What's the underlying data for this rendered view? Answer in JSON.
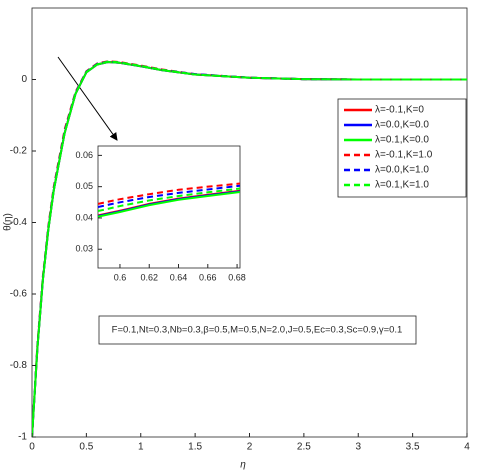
{
  "chart_data": [
    {
      "type": "line",
      "xlabel": "η",
      "ylabel": "θ(η)",
      "xlim": [
        0,
        4
      ],
      "ylim": [
        -1,
        0.2
      ],
      "xticks": [
        0,
        0.5,
        1,
        1.5,
        2,
        2.5,
        3,
        3.5,
        4
      ],
      "yticks": [
        -1,
        -0.8,
        -0.6,
        -0.4,
        -0.2,
        0
      ],
      "legend": "upper right",
      "annotation": "F=0.1,Nt=0.3,Nb=0.3,β=0.5,M=0.5,N=2.0,J=0.5,Ec=0.3,Sc=0.9,γ=0.1",
      "x": [
        0,
        0.05,
        0.1,
        0.15,
        0.2,
        0.3,
        0.4,
        0.5,
        0.6,
        0.7,
        0.8,
        1,
        1.2,
        1.5,
        2,
        2.5,
        3,
        4
      ],
      "series": [
        {
          "name": "λ=-0.1,K=0",
          "color": "#ff0000",
          "linestyle": "solid",
          "values": [
            -1,
            -0.75,
            -0.56,
            -0.42,
            -0.31,
            -0.15,
            -0.04,
            0.02,
            0.042,
            0.049,
            0.047,
            0.037,
            0.026,
            0.014,
            0.005,
            0.001,
            0,
            0
          ]
        },
        {
          "name": "λ=0.0,K=0.0",
          "color": "#0000ff",
          "linestyle": "solid",
          "values": [
            -1,
            -0.75,
            -0.56,
            -0.42,
            -0.31,
            -0.15,
            -0.04,
            0.02,
            0.042,
            0.049,
            0.047,
            0.037,
            0.026,
            0.014,
            0.005,
            0.001,
            0,
            0
          ]
        },
        {
          "name": "λ=0.1,K=0.0",
          "color": "#00ff00",
          "linestyle": "solid",
          "values": [
            -1,
            -0.75,
            -0.56,
            -0.42,
            -0.31,
            -0.15,
            -0.04,
            0.02,
            0.042,
            0.049,
            0.047,
            0.037,
            0.026,
            0.014,
            0.005,
            0.001,
            0,
            0
          ]
        },
        {
          "name": "λ=-0.1,K=1.0",
          "color": "#ff0000",
          "linestyle": "dashed",
          "values": [
            -1,
            -0.74,
            -0.55,
            -0.41,
            -0.3,
            -0.14,
            -0.035,
            0.023,
            0.045,
            0.051,
            0.049,
            0.039,
            0.028,
            0.015,
            0.005,
            0.001,
            0,
            0
          ]
        },
        {
          "name": "λ=0.0,K=1.0",
          "color": "#0000ff",
          "linestyle": "dashed",
          "values": [
            -1,
            -0.745,
            -0.555,
            -0.415,
            -0.305,
            -0.145,
            -0.037,
            0.022,
            0.044,
            0.05,
            0.048,
            0.038,
            0.027,
            0.015,
            0.005,
            0.001,
            0,
            0
          ]
        },
        {
          "name": "λ=0.1,K=1.0",
          "color": "#00ff00",
          "linestyle": "dashed",
          "values": [
            -1,
            -0.748,
            -0.558,
            -0.418,
            -0.308,
            -0.148,
            -0.039,
            0.021,
            0.043,
            0.05,
            0.048,
            0.038,
            0.027,
            0.014,
            0.005,
            0.001,
            0,
            0
          ]
        }
      ]
    },
    {
      "type": "line",
      "xlim": [
        0.585,
        0.682
      ],
      "ylim": [
        0.024,
        0.063
      ],
      "xticks": [
        0.6,
        0.62,
        0.64,
        0.66,
        0.68
      ],
      "yticks": [
        0.03,
        0.04,
        0.05,
        0.06
      ],
      "x": [
        0.585,
        0.6,
        0.62,
        0.64,
        0.66,
        0.682
      ],
      "series": [
        {
          "color": "#ff0000",
          "linestyle": "solid",
          "values": [
            0.0408,
            0.0423,
            0.0445,
            0.0462,
            0.0474,
            0.0487
          ]
        },
        {
          "color": "#0000ff",
          "linestyle": "solid",
          "values": [
            0.0406,
            0.0421,
            0.0443,
            0.046,
            0.0472,
            0.0485
          ]
        },
        {
          "color": "#00ff00",
          "linestyle": "solid",
          "values": [
            0.0404,
            0.0419,
            0.0441,
            0.0458,
            0.047,
            0.0483
          ]
        },
        {
          "color": "#ff0000",
          "linestyle": "dashed",
          "values": [
            0.0445,
            0.046,
            0.0476,
            0.049,
            0.05,
            0.051
          ]
        },
        {
          "color": "#0000ff",
          "linestyle": "dashed",
          "values": [
            0.0435,
            0.045,
            0.0467,
            0.048,
            0.0491,
            0.0503
          ]
        },
        {
          "color": "#00ff00",
          "linestyle": "dashed",
          "values": [
            0.0422,
            0.0438,
            0.0456,
            0.047,
            0.0482,
            0.0494
          ]
        }
      ]
    }
  ]
}
